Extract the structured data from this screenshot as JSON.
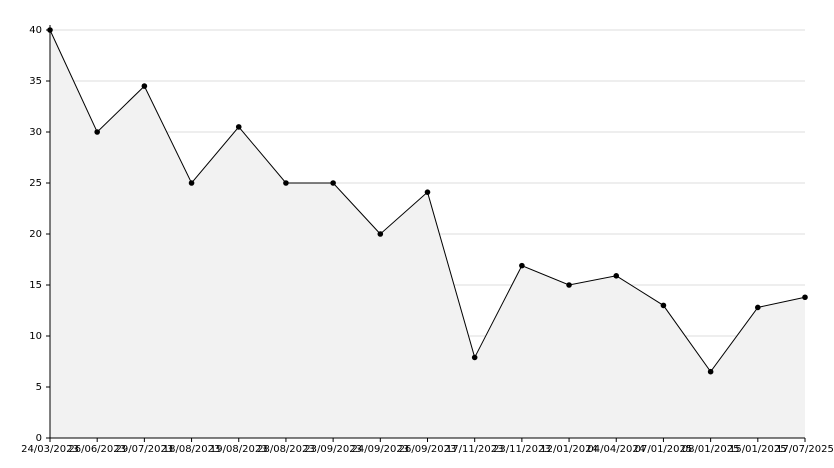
{
  "chart_data": {
    "type": "area",
    "categories": [
      "24/03/2023",
      "26/06/2023",
      "29/07/2023",
      "18/08/2023",
      "19/08/2023",
      "28/08/2023",
      "23/09/2023",
      "24/09/2023",
      "26/09/2023",
      "17/11/2023",
      "23/11/2023",
      "12/01/2024",
      "04/04/2024",
      "07/01/2025",
      "08/01/2025",
      "15/01/2025",
      "17/07/2025"
    ],
    "values": [
      40,
      30,
      34.5,
      25,
      30.5,
      25,
      25,
      20,
      24.1,
      7.9,
      16.9,
      15,
      15.9,
      13,
      6.5,
      12.8,
      13.8
    ],
    "color": "#000000",
    "fill": "#f2f2f2",
    "ylim": [
      0,
      40
    ],
    "yticks": [
      0,
      5,
      10,
      15,
      20,
      25,
      30,
      35,
      40
    ],
    "grid": true
  }
}
